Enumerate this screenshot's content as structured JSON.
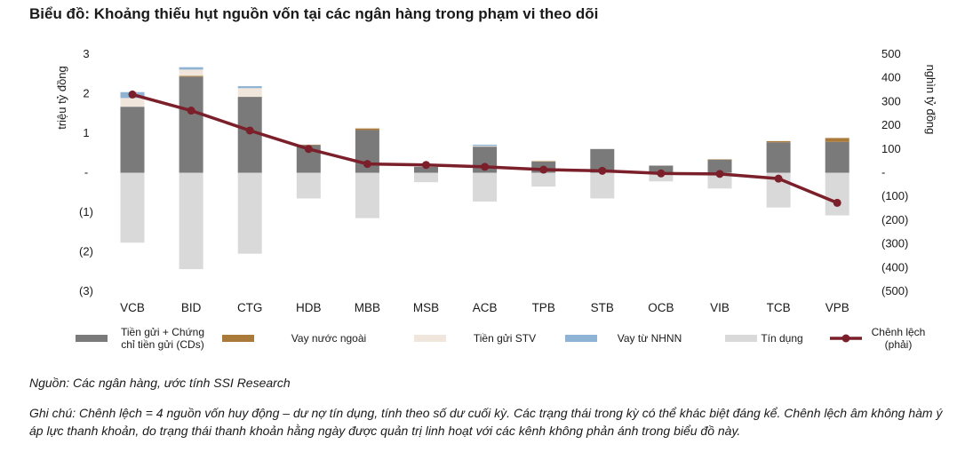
{
  "title": "Biểu đồ: Khoảng thiếu hụt nguồn vốn tại các ngân hàng trong phạm vi theo dõi",
  "source": "Nguồn: Các ngân hàng, ước tính SSI Research",
  "note": "Ghi chú: Chênh lệch = 4 nguồn vốn huy động – dư nợ tín dụng, tính theo số dư cuối kỳ. Các trạng thái trong kỳ có thể khác biệt đáng kể. Chênh lệch âm không hàm ý áp lực thanh khoản, do trạng thái thanh khoản hằng ngày được quản trị linh hoạt với các kênh không phản ánh trong biểu đồ này.",
  "colors": {
    "deposits": "#7a7a7a",
    "foreign": "#a97a3a",
    "stv": "#f1e6dc",
    "sbv": "#8fb3d4",
    "credit": "#d9d9d9",
    "gap": "#7b1f2a"
  },
  "chart_data": {
    "type": "bar",
    "stacked": true,
    "categories": [
      "VCB",
      "BID",
      "CTG",
      "HDB",
      "MBB",
      "MSB",
      "ACB",
      "TPB",
      "STB",
      "OCB",
      "VIB",
      "TCB",
      "VPB"
    ],
    "left_axis": {
      "label": "triệu tỷ đồng",
      "ylim": [
        -3,
        3
      ],
      "ticks": [
        3,
        2,
        1,
        0,
        -1,
        -2,
        -3
      ],
      "tick_labels": [
        "3",
        "2",
        "1",
        "-",
        "(1)",
        "(2)",
        "(3)"
      ]
    },
    "right_axis": {
      "label": "nghìn tỷ đồng",
      "ylim": [
        -500,
        500
      ],
      "ticks": [
        500,
        400,
        300,
        200,
        100,
        0,
        -100,
        -200,
        -300,
        -400,
        -500
      ],
      "tick_labels": [
        "500",
        "400",
        "300",
        "200",
        "100",
        "-",
        "(100)",
        "(200)",
        "(300)",
        "(400)",
        "(500)"
      ]
    },
    "series": [
      {
        "name": "Tiền gửi + Chứng chỉ tiền gửi (CDs)",
        "name_lines": [
          "Tiền gửi + Chứng",
          "chỉ tiền gửi (CDs)"
        ],
        "axis": "left",
        "color_key": "deposits",
        "values": [
          1.67,
          2.43,
          1.92,
          0.7,
          1.08,
          0.15,
          0.66,
          0.28,
          0.6,
          0.18,
          0.33,
          0.77,
          0.78
        ]
      },
      {
        "name": "Vay nước ngoài",
        "name_lines": [
          "Vay nước ngoài"
        ],
        "axis": "left",
        "color_key": "foreign",
        "values": [
          0.0,
          0.02,
          0.0,
          0.01,
          0.04,
          0.0,
          0.0,
          0.01,
          0.0,
          0.0,
          0.01,
          0.03,
          0.1
        ]
      },
      {
        "name": "Tiền gửi STV",
        "name_lines": [
          "Tiền gửi STV"
        ],
        "axis": "left",
        "color_key": "stv",
        "values": [
          0.22,
          0.16,
          0.22,
          0.0,
          0.02,
          0.0,
          0.02,
          0.02,
          0.0,
          0.0,
          0.01,
          0.0,
          0.01
        ]
      },
      {
        "name": "Vay từ NHNN",
        "name_lines": [
          "Vay từ NHNN"
        ],
        "axis": "left",
        "color_key": "sbv",
        "values": [
          0.15,
          0.06,
          0.05,
          0.0,
          0.0,
          0.0,
          0.03,
          0.0,
          0.0,
          0.0,
          0.0,
          0.0,
          0.0
        ]
      },
      {
        "name": "Tín dụng",
        "name_lines": [
          "Tín dụng"
        ],
        "axis": "left",
        "color_key": "credit",
        "values": [
          -1.77,
          -2.44,
          -2.05,
          -0.65,
          -1.15,
          -0.24,
          -0.73,
          -0.35,
          -0.65,
          -0.22,
          -0.4,
          -0.88,
          -1.08
        ]
      },
      {
        "name": "Chênh lệch (phải)",
        "name_lines": [
          "Chênh lệch",
          "(phải)"
        ],
        "axis": "right",
        "type": "line",
        "color_key": "gap",
        "values": [
          330,
          262,
          178,
          100,
          37,
          33,
          25,
          13,
          8,
          -3,
          -5,
          -25,
          -127
        ]
      }
    ],
    "legend_position": "bottom",
    "grid": false
  }
}
